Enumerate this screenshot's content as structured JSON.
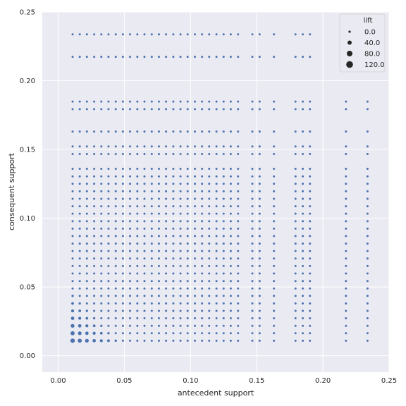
{
  "chart_data": {
    "type": "scatter",
    "xlabel": "antecedent support",
    "ylabel": "consequent support",
    "xlim": [
      -0.012,
      0.25
    ],
    "ylim": [
      -0.012,
      0.25
    ],
    "x_ticks": [
      0.0,
      0.05,
      0.1,
      0.15,
      0.2,
      0.25
    ],
    "y_ticks": [
      0.0,
      0.05,
      0.1,
      0.15,
      0.2,
      0.25
    ],
    "x_tick_labels": [
      "0.00",
      "0.05",
      "0.10",
      "0.15",
      "0.20",
      "0.25"
    ],
    "y_tick_labels": [
      "0.00",
      "0.05",
      "0.10",
      "0.15",
      "0.20",
      "0.25"
    ],
    "grid": true,
    "point_color": "#4c72b0",
    "background_color": "#eaeaf2",
    "grid_color": "#ffffff",
    "x_support_levels": [
      0.0109,
      0.0163,
      0.0217,
      0.0272,
      0.0326,
      0.038,
      0.0435,
      0.0489,
      0.0543,
      0.0598,
      0.0652,
      0.0707,
      0.0761,
      0.0815,
      0.087,
      0.0924,
      0.0978,
      0.1033,
      0.1087,
      0.1141,
      0.1196,
      0.125,
      0.1304,
      0.1359,
      0.1467,
      0.1522,
      0.163,
      0.1793,
      0.1848,
      0.1902,
      0.2174,
      0.2337
    ],
    "y_support_levels": [
      0.0109,
      0.0163,
      0.0217,
      0.0272,
      0.0326,
      0.038,
      0.0435,
      0.0489,
      0.0543,
      0.0598,
      0.0652,
      0.0707,
      0.0761,
      0.0815,
      0.087,
      0.0924,
      0.0978,
      0.1033,
      0.1087,
      0.1141,
      0.1196,
      0.125,
      0.1304,
      0.1359,
      0.1467,
      0.1522,
      0.163,
      0.1793,
      0.1848,
      0.1902,
      0.2174,
      0.2337
    ],
    "legend": {
      "title": "lift",
      "placement": "top-right",
      "entries": [
        {
          "label": "0.0",
          "value": 0
        },
        {
          "label": "40.0",
          "value": 40
        },
        {
          "label": "80.0",
          "value": 80
        },
        {
          "label": "120.0",
          "value": 120
        }
      ]
    }
  }
}
